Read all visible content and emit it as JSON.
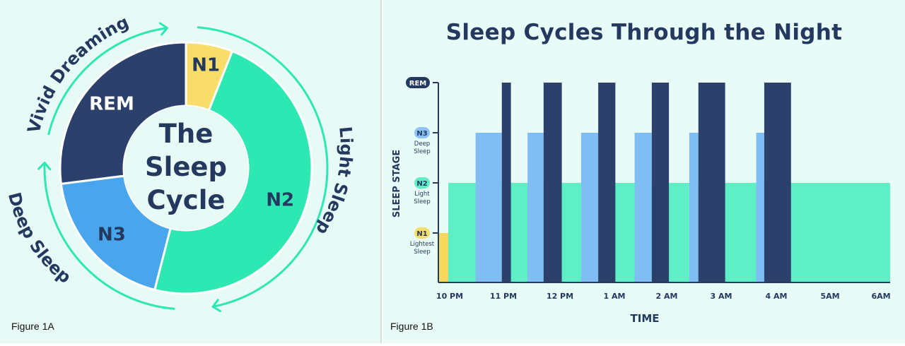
{
  "figures": {
    "figure_a_caption": "Figure 1A",
    "figure_b_caption": "Figure 1B"
  },
  "chart_data": [
    {
      "type": "pie",
      "variant": "donut",
      "center_label": [
        "The",
        "Sleep",
        "Cycle"
      ],
      "slices": [
        {
          "label": "N1",
          "value": 6,
          "color": "#f8dd6a",
          "text_color": "#24395f"
        },
        {
          "label": "N2",
          "value": 48,
          "color": "#2ee8b3",
          "text_color": "#24395f"
        },
        {
          "label": "N3",
          "value": 19,
          "color": "#4aa6ec",
          "text_color": "#24395f"
        },
        {
          "label": "REM",
          "value": 27,
          "color": "#2b416c",
          "text_color": "#ffffff"
        }
      ],
      "outer_labels": [
        {
          "text": "Light Sleep"
        },
        {
          "text": "Deep Sleep"
        },
        {
          "text": "Vivid Dreaming"
        }
      ],
      "colors": {
        "ring_arrow": "#2ee8b3",
        "center_text": "#24395f",
        "background": "#e8faf5"
      }
    },
    {
      "type": "bar",
      "title": "Sleep Cycles Through the Night",
      "xlabel": "TIME",
      "ylabel": "SLEEP STAGE",
      "x_ticks": [
        "10 PM",
        "11 PM",
        "12 PM",
        "1 AM",
        "2 AM",
        "3 AM",
        "4 AM",
        "5AM",
        "6AM"
      ],
      "y_levels": [
        {
          "stage": "N1",
          "sublabel": [
            "Lightest",
            "Sleep"
          ],
          "level": 1,
          "badge_color": "#f8dd6a",
          "badge_text": "#24395f"
        },
        {
          "stage": "N2",
          "sublabel": [
            "Light",
            "Sleep"
          ],
          "level": 2,
          "badge_color": "#5eefc6",
          "badge_text": "#24395f"
        },
        {
          "stage": "N3",
          "sublabel": [
            "Deep",
            "Sleep"
          ],
          "level": 3,
          "badge_color": "#8cc4f5",
          "badge_text": "#24395f"
        },
        {
          "stage": "REM",
          "sublabel": [],
          "level": 4,
          "badge_color": "#24395f",
          "badge_text": "#ffffff"
        }
      ],
      "x_range_hours": [
        0,
        8
      ],
      "series": [
        {
          "name": "N1",
          "color": "#f8d85a",
          "segments": [
            [
              -0.17,
              0.0
            ]
          ],
          "level": 1
        },
        {
          "name": "N2",
          "color": "#5eefc6",
          "segments": [
            [
              0.0,
              8.25
            ]
          ],
          "level": 2
        },
        {
          "name": "N3",
          "color": "#80bdf2",
          "segments": [
            [
              0.51,
              1.0
            ],
            [
              1.48,
              1.78
            ],
            [
              2.48,
              2.8
            ],
            [
              3.48,
              3.8
            ],
            [
              4.5,
              4.67
            ],
            [
              5.75,
              5.9
            ]
          ],
          "level": 3
        },
        {
          "name": "REM",
          "color": "#2b416c",
          "segments": [
            [
              1.0,
              1.17
            ],
            [
              1.78,
              2.12
            ],
            [
              2.8,
              3.12
            ],
            [
              3.8,
              4.12
            ],
            [
              4.67,
              5.17
            ],
            [
              5.9,
              6.4
            ]
          ],
          "level": 4
        }
      ],
      "colors": {
        "axis": "#24395f",
        "title": "#24395f",
        "background": "#e9fbf7"
      }
    }
  ]
}
